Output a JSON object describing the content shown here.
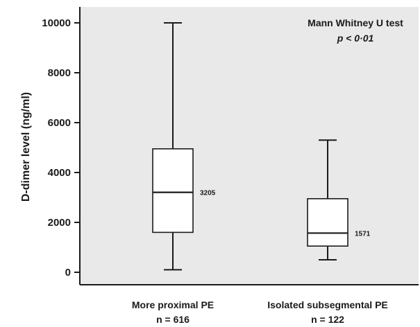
{
  "chart_data": {
    "type": "boxplot",
    "title": "",
    "xlabel": "",
    "ylabel": "D-dimer level (ng/ml)",
    "ylim": [
      -550,
      10700
    ],
    "yticks": [
      0,
      2000,
      4000,
      6000,
      8000,
      10000
    ],
    "ytick_labels": [
      "0",
      "2000",
      "4000",
      "6000",
      "8000",
      "10000"
    ],
    "grid": false,
    "background_color": "#e9e9e9",
    "annotation": {
      "line1": "Mann Whitney U test",
      "line2": "p < 0·01"
    },
    "categories": [
      {
        "label": "More proximal PE",
        "n_label": "n = 616"
      },
      {
        "label": "Isolated subsegmental PE",
        "n_label": "n = 122"
      }
    ],
    "boxes": [
      {
        "whisker_low": 100,
        "q1": 1600,
        "median": 3205,
        "q3": 4950,
        "whisker_high": 10000,
        "median_label": "3205"
      },
      {
        "whisker_low": 500,
        "q1": 1050,
        "median": 1571,
        "q3": 2950,
        "whisker_high": 5300,
        "median_label": "1571"
      }
    ]
  }
}
